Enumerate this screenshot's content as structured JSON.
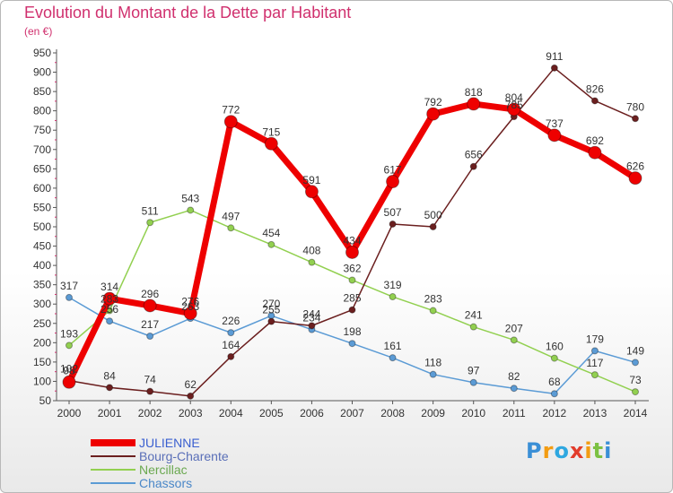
{
  "title": "Evolution du Montant de la Dette par Habitant",
  "unit_label": "(en €)",
  "logo": {
    "text": "Proxiti",
    "letters": [
      "P",
      "r",
      "o",
      "x",
      "i",
      "t",
      "i"
    ],
    "colors": [
      "#3a8fd6",
      "#f39c12",
      "#2ea7e0",
      "#e23c2b",
      "#f39c12",
      "#7cc142",
      "#3a8fd6"
    ]
  },
  "chart_data": {
    "type": "line",
    "title": "Evolution du Montant de la Dette par Habitant",
    "ylabel": "(en €)",
    "xlabel": "",
    "x": [
      "2000",
      "2001",
      "2002",
      "2003",
      "2004",
      "2005",
      "2006",
      "2007",
      "2008",
      "2009",
      "2010",
      "2011",
      "2012",
      "2013",
      "2014"
    ],
    "ylim": [
      50,
      950
    ],
    "yticks": [
      50,
      100,
      150,
      200,
      250,
      300,
      350,
      400,
      450,
      500,
      550,
      600,
      650,
      700,
      750,
      800,
      850,
      900,
      950
    ],
    "grid": false,
    "legend_position": "bottom-left",
    "series": [
      {
        "name": "Chassors",
        "color": "#5b9bd5",
        "values": [
          317,
          256,
          217,
          263,
          226,
          270,
          234,
          198,
          161,
          118,
          97,
          82,
          68,
          179,
          149
        ]
      },
      {
        "name": "Nercillac",
        "color": "#92d050",
        "values": [
          193,
          283,
          511,
          543,
          497,
          454,
          408,
          362,
          319,
          283,
          241,
          207,
          160,
          117,
          73
        ]
      },
      {
        "name": "Bourg-Charente",
        "color": "#6b1f1f",
        "values": [
          102,
          84,
          74,
          62,
          164,
          255,
          244,
          285,
          507,
          500,
          656,
          785,
          911,
          826,
          780
        ]
      },
      {
        "name": "JULIENNE",
        "color": "#ee0000",
        "values": [
          98,
          314,
          296,
          276,
          772,
          715,
          591,
          434,
          617,
          792,
          818,
          804,
          737,
          692,
          626
        ]
      }
    ]
  }
}
